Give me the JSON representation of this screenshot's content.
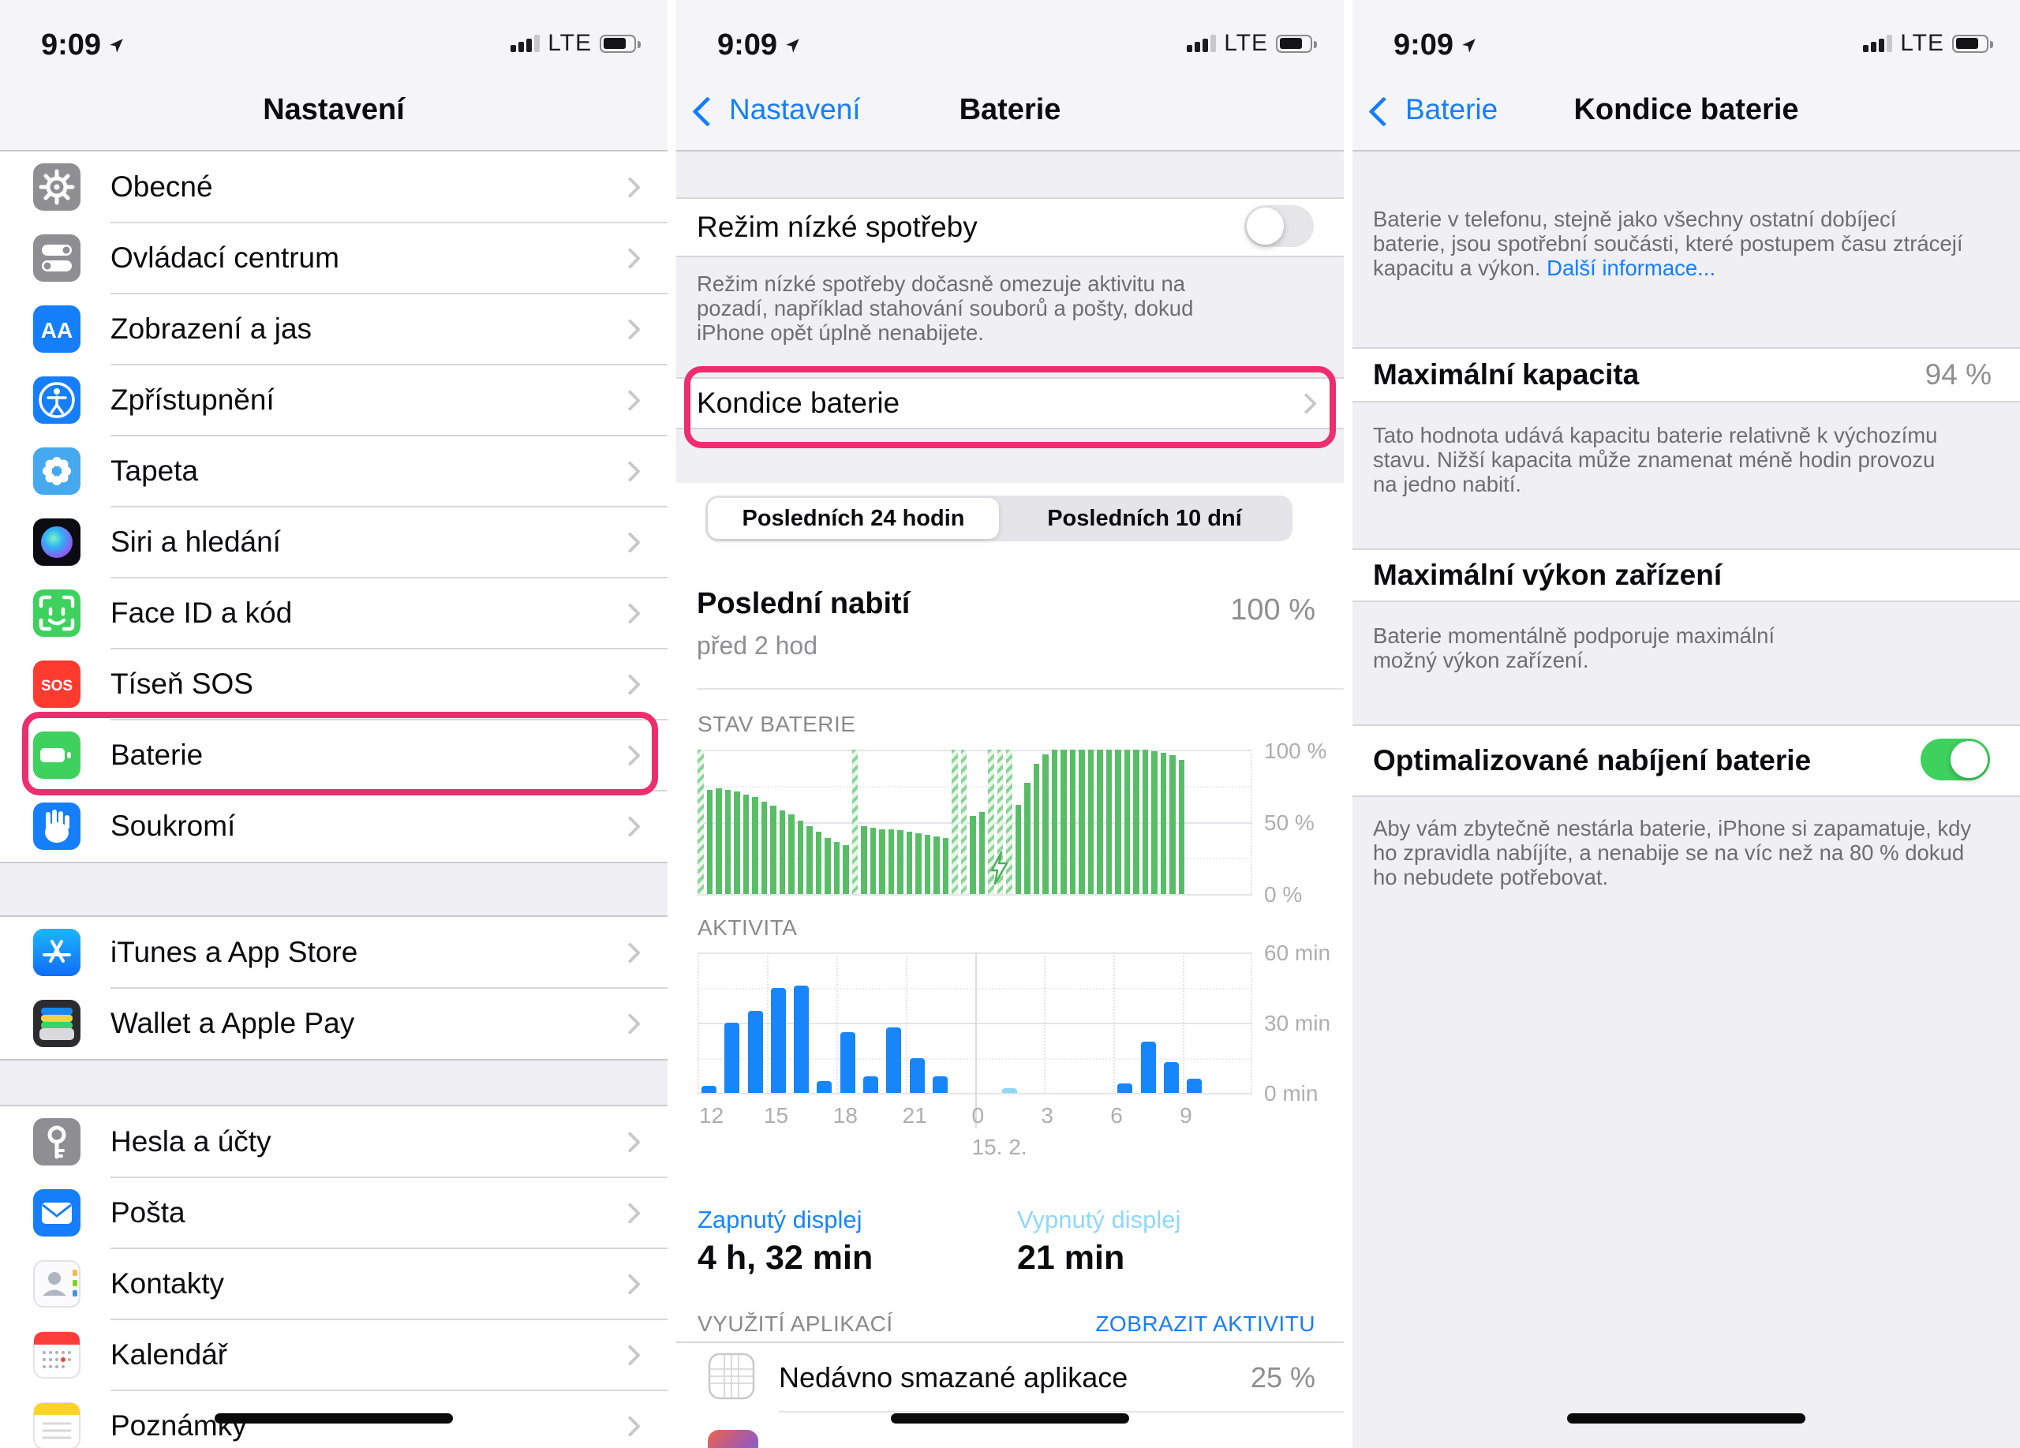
{
  "status": {
    "time": "9:09",
    "network": "LTE"
  },
  "settings_panel": {
    "title": "Nastavení",
    "groups": [
      {
        "items": [
          {
            "icon": "gear",
            "label": "Obecné",
            "color": "#8E8E93"
          },
          {
            "icon": "control-center",
            "label": "Ovládací centrum",
            "color": "#8E8E93"
          },
          {
            "icon": "display-brightness",
            "label": "Zobrazení a jas",
            "color": "#157EFB"
          },
          {
            "icon": "accessibility",
            "label": "Zpřístupnění",
            "color": "#157EFB"
          },
          {
            "icon": "wallpaper",
            "label": "Tapeta",
            "color": "#46A8EE"
          },
          {
            "icon": "siri",
            "label": "Siri a hledání",
            "color": "#0B0B12"
          },
          {
            "icon": "face-id",
            "label": "Face ID a kód",
            "color": "#3FD15E"
          },
          {
            "icon": "sos",
            "label": "Tíseň SOS",
            "color": "#FF3B30"
          },
          {
            "icon": "battery",
            "label": "Baterie",
            "color": "#3FD15E",
            "highlighted": true
          },
          {
            "icon": "privacy",
            "label": "Soukromí",
            "color": "#157EFB"
          }
        ]
      },
      {
        "items": [
          {
            "icon": "app-store",
            "label": "iTunes a App Store",
            "color": "#2AA9F7"
          },
          {
            "icon": "wallet",
            "label": "Wallet a Apple Pay",
            "color": "#2C2C2E"
          }
        ]
      },
      {
        "items": [
          {
            "icon": "passwords",
            "label": "Hesla a účty",
            "color": "#8E8E93"
          },
          {
            "icon": "mail",
            "label": "Pošta",
            "color": "#157EFB"
          },
          {
            "icon": "contacts",
            "label": "Kontakty",
            "color": "#F6F6F8"
          },
          {
            "icon": "calendar",
            "label": "Kalendář",
            "color": "#FFFFFF"
          },
          {
            "icon": "notes",
            "label": "Poznámky",
            "color": "#FFFFFF"
          }
        ]
      }
    ]
  },
  "battery_panel": {
    "back": "Nastavení",
    "title": "Baterie",
    "low_power_label": "Režim nízké spotřeby",
    "low_power_enabled": false,
    "low_power_note": "Režim nízké spotřeby dočasně omezuje aktivitu na pozadí, například stahování souborů a pošty, dokud iPhone opět úplně nenabijete.",
    "health_row_label": "Kondice baterie",
    "segmented": {
      "options": [
        "Posledních 24 hodin",
        "Posledních 10 dní"
      ],
      "selected_index": 0
    },
    "last_charge_label": "Poslední nabití",
    "last_charge_value": "100 %",
    "last_charge_sub": "před 2 hod",
    "screen_on_label": "Zapnutý displej",
    "screen_on_value": "4 h, 32 min",
    "screen_off_label": "Vypnutý displej",
    "screen_off_value": "21 min",
    "usage_header": "VYUŽITÍ APLIKACÍ",
    "usage_action": "ZOBRAZIT AKTIVITU",
    "usage_rows": [
      {
        "label": "Nedávno smazané aplikace",
        "value": "25 %"
      }
    ]
  },
  "health_panel": {
    "back": "Baterie",
    "title": "Kondice baterie",
    "intro": "Baterie v telefonu, stejně jako všechny ostatní dobíjecí baterie, jsou spotřební součásti, které postupem času ztrácejí kapacitu a výkon. ",
    "intro_link": "Další informace...",
    "capacity_label": "Maximální kapacita",
    "capacity_value": "94 %",
    "capacity_note": "Tato hodnota udává kapacitu baterie relativně k výchozímu stavu. Nižší kapacita může znamenat méně hodin provozu na jedno nabití.",
    "peak_label": "Maximální výkon zařízení",
    "peak_note": "Baterie momentálně podporuje maximální možný výkon zařízení.",
    "optimized_label": "Optimalizované nabíjení baterie",
    "optimized_enabled": true,
    "optimized_note": "Aby vám zbytečně nestárla baterie, iPhone si zapamatuje, kdy ho zpravidla nabíjíte, a nenabije se na víc než na 80 % dokud ho nebudete potřebovat."
  },
  "chart_data": [
    {
      "type": "bar",
      "title": "STAV BATERIE",
      "ylabel": "charge percent",
      "ylim": [
        0,
        100
      ],
      "ytick_labels": [
        "100 %",
        "50 %",
        "0 %"
      ],
      "note": "bars are half-hour battery level samples over last 24 h; charging=1 means hatched charging bar",
      "bars": [
        [
          100,
          1
        ],
        [
          72,
          0
        ],
        [
          73,
          0
        ],
        [
          72,
          0
        ],
        [
          71,
          0
        ],
        [
          69,
          0
        ],
        [
          67,
          0
        ],
        [
          64,
          0
        ],
        [
          61,
          0
        ],
        [
          58,
          0
        ],
        [
          55,
          0
        ],
        [
          51,
          0
        ],
        [
          47,
          0
        ],
        [
          43,
          0
        ],
        [
          39,
          0
        ],
        [
          36,
          0
        ],
        [
          34,
          0
        ],
        [
          100,
          1
        ],
        [
          47,
          0
        ],
        [
          46,
          0
        ],
        [
          45,
          0
        ],
        [
          45,
          0
        ],
        [
          44,
          0
        ],
        [
          43,
          0
        ],
        [
          42,
          0
        ],
        [
          41,
          0
        ],
        [
          40,
          0
        ],
        [
          39,
          0
        ],
        [
          100,
          1
        ],
        [
          100,
          1
        ],
        [
          54,
          0
        ],
        [
          57,
          0
        ],
        [
          100,
          1
        ],
        [
          100,
          1
        ],
        [
          100,
          1
        ],
        [
          62,
          0
        ],
        [
          77,
          0
        ],
        [
          90,
          0
        ],
        [
          97,
          0
        ],
        [
          100,
          0
        ],
        [
          100,
          0
        ],
        [
          100,
          0
        ],
        [
          100,
          0
        ],
        [
          100,
          0
        ],
        [
          100,
          0
        ],
        [
          100,
          0
        ],
        [
          100,
          0
        ],
        [
          100,
          0
        ],
        [
          100,
          0
        ],
        [
          100,
          0
        ],
        [
          99,
          0
        ],
        [
          98,
          0
        ],
        [
          96,
          0
        ],
        [
          93,
          0
        ]
      ]
    },
    {
      "type": "bar",
      "title": "AKTIVITA",
      "ylabel": "minutes of activity per hour",
      "ylim": [
        0,
        60
      ],
      "ytick_labels": [
        "60 min",
        "30 min",
        "0 min"
      ],
      "xtick_indices": [
        0,
        3,
        6,
        9,
        12,
        15,
        18,
        21
      ],
      "xtick_labels": [
        "12",
        "15",
        "18",
        "21",
        "0",
        "3",
        "6",
        "9"
      ],
      "date_label": "15. 2.",
      "hours": [
        {
          "hour": "12",
          "v": 3
        },
        {
          "hour": "13",
          "v": 30
        },
        {
          "hour": "14",
          "v": 35
        },
        {
          "hour": "15",
          "v": 45
        },
        {
          "hour": "16",
          "v": 46
        },
        {
          "hour": "17",
          "v": 5
        },
        {
          "hour": "18",
          "v": 26
        },
        {
          "hour": "19",
          "v": 7
        },
        {
          "hour": "20",
          "v": 28
        },
        {
          "hour": "21",
          "v": 15
        },
        {
          "hour": "22",
          "v": 7
        },
        {
          "hour": "23",
          "v": 0
        },
        {
          "hour": "0",
          "v": 0
        },
        {
          "hour": "1",
          "v": 2,
          "light": true
        },
        {
          "hour": "2",
          "v": 0
        },
        {
          "hour": "3",
          "v": 0
        },
        {
          "hour": "4",
          "v": 0
        },
        {
          "hour": "5",
          "v": 0
        },
        {
          "hour": "6",
          "v": 4
        },
        {
          "hour": "7",
          "v": 22
        },
        {
          "hour": "8",
          "v": 13
        },
        {
          "hour": "9",
          "v": 6
        },
        {
          "hour": "10",
          "v": 0
        },
        {
          "hour": "11",
          "v": 0
        }
      ]
    }
  ],
  "colors": {
    "accent_blue": "#157EFB",
    "light_blue": "#8ED8F8",
    "toggle_green": "#3FD15E",
    "chart_green": "#57BE66",
    "chart_blue": "#1786FB",
    "highlight_pink": "#EC2D6E"
  }
}
